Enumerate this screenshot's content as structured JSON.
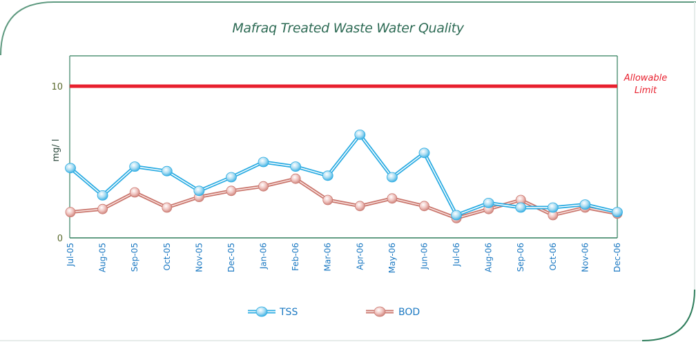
{
  "chart_data": {
    "type": "line",
    "title": "Mafraq Treated Waste Water Quality",
    "xlabel": "",
    "ylabel": "mg/ l",
    "ylim": [
      0,
      12
    ],
    "yticks": [
      0,
      10
    ],
    "ytick_labels": [
      "0",
      "10"
    ],
    "grid": false,
    "categories": [
      "Jul-05",
      "Aug-05",
      "Sep-05",
      "Oct-05",
      "Nov-05",
      "Dec-05",
      "Jan-06",
      "Feb-06",
      "Mar-06",
      "Apr-06",
      "May-06",
      "Jun-06",
      "Jul-06",
      "Aug-06",
      "Sep-06",
      "Oct-06",
      "Nov-06",
      "Dec-06"
    ],
    "series": [
      {
        "name": "TSS",
        "color": "#29abe2",
        "values": [
          4.6,
          2.8,
          4.7,
          4.4,
          3.1,
          4.0,
          5.0,
          4.7,
          4.1,
          6.8,
          4.0,
          5.6,
          1.5,
          2.3,
          2.0,
          2.0,
          2.2,
          1.7
        ]
      },
      {
        "name": "BOD",
        "color": "#c9756c",
        "values": [
          1.7,
          1.9,
          3.0,
          2.0,
          2.7,
          3.1,
          3.4,
          3.9,
          2.5,
          2.1,
          2.6,
          2.1,
          1.3,
          1.9,
          2.5,
          1.5,
          2.0,
          1.6
        ]
      }
    ],
    "reference_line": {
      "value": 10,
      "label_line1": "Allowable",
      "label_line2": "Limit",
      "color": "#e8202e"
    },
    "legend": {
      "placement": "bottom-center",
      "entries": [
        "TSS",
        "BOD"
      ]
    },
    "axis_color": "#2e7d5b"
  }
}
